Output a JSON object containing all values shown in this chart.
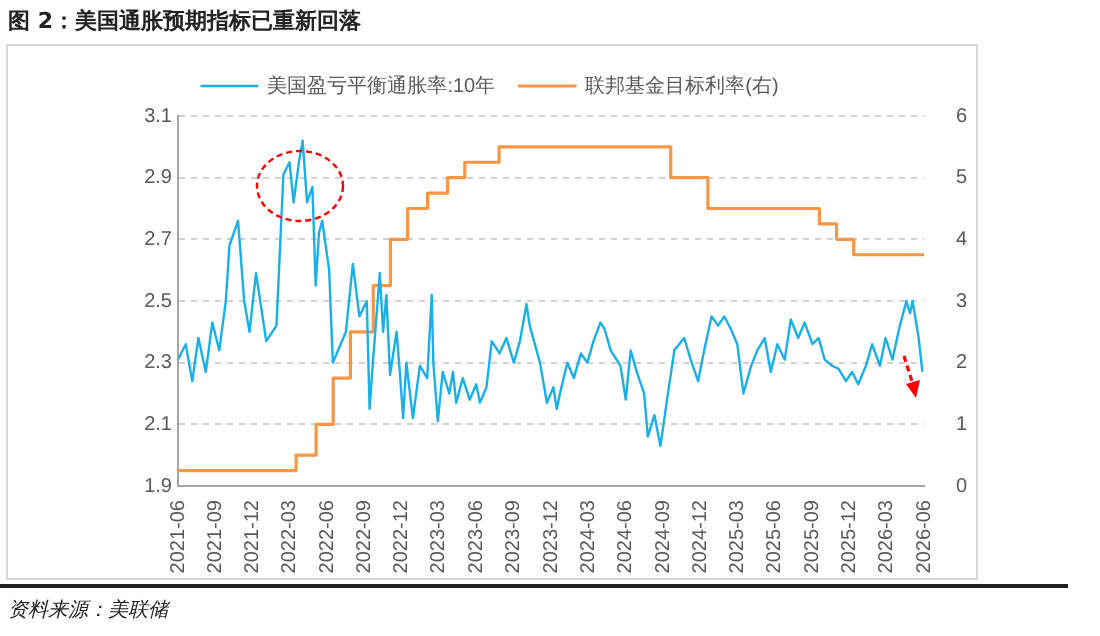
{
  "chart_data": {
    "type": "line",
    "title": "图 2：美国通胀预期指标已重新回落",
    "annotations": [
      "资料来源：美联储"
    ],
    "legend": "top",
    "grid": "y",
    "marker": "none",
    "xlim": [
      "2021-06",
      "2026-06"
    ],
    "xticks": [
      "2021-06",
      "2021-09",
      "2021-12",
      "2022-03",
      "2022-06",
      "2022-09",
      "2022-12",
      "2023-03",
      "2023-06",
      "2023-09",
      "2023-12",
      "2024-03",
      "2024-06",
      "2024-09",
      "2024-12",
      "2025-03",
      "2025-06",
      "2025-09",
      "2025-12",
      "2026-03",
      "2026-06"
    ],
    "ylim": [
      1.9,
      3.1
    ],
    "yticks": [
      1.9,
      2.1,
      2.3,
      2.5,
      2.7,
      2.9,
      3.1
    ],
    "y2lim": [
      0,
      6
    ],
    "y2ticks": [
      0,
      1,
      2,
      3,
      4,
      5,
      6
    ],
    "series": [
      {
        "name": "美国盈亏平衡通胀率:10年",
        "color": "#1aafe6",
        "x": [
          "2021-06-01",
          "2021-06-20",
          "2021-07-06",
          "2021-07-21",
          "2021-08-08",
          "2021-08-24",
          "2021-09-10",
          "2021-09-26",
          "2021-10-05",
          "2021-10-26",
          "2021-11-10",
          "2021-11-23",
          "2021-12-09",
          "2022-01-03",
          "2022-01-28",
          "2022-02-14",
          "2022-03-01",
          "2022-03-11",
          "2022-03-24",
          "2022-04-02",
          "2022-04-13",
          "2022-04-26",
          "2022-05-04",
          "2022-05-12",
          "2022-05-20",
          "2022-06-06",
          "2022-06-15",
          "2022-07-01",
          "2022-07-17",
          "2022-08-03",
          "2022-08-19",
          "2022-09-06",
          "2022-09-13",
          "2022-09-21",
          "2022-10-08",
          "2022-10-16",
          "2022-10-24",
          "2022-11-02",
          "2022-11-18",
          "2022-11-26",
          "2022-12-04",
          "2022-12-12",
          "2022-12-28",
          "2023-01-14",
          "2023-02-01",
          "2023-02-12",
          "2023-02-16",
          "2023-02-27",
          "2023-03-11",
          "2023-03-27",
          "2023-04-05",
          "2023-04-13",
          "2023-04-29",
          "2023-05-16",
          "2023-06-01",
          "2023-06-10",
          "2023-06-26",
          "2023-07-09",
          "2023-07-28",
          "2023-08-14",
          "2023-09-01",
          "2023-09-16",
          "2023-10-02",
          "2023-10-10",
          "2023-11-04",
          "2023-11-21",
          "2023-12-07",
          "2023-12-15",
          "2023-12-23",
          "2024-01-10",
          "2024-01-26",
          "2024-02-12",
          "2024-02-28",
          "2024-03-14",
          "2024-03-31",
          "2024-04-10",
          "2024-04-25",
          "2024-05-19",
          "2024-06-01",
          "2024-06-13",
          "2024-06-28",
          "2024-07-16",
          "2024-07-25",
          "2024-08-10",
          "2024-08-25",
          "2024-09-10",
          "2024-09-28",
          "2024-10-22",
          "2024-11-07",
          "2024-11-25",
          "2024-12-10",
          "2024-12-28",
          "2025-01-13",
          "2025-01-28",
          "2025-02-13",
          "2025-03-01",
          "2025-03-16",
          "2025-04-04",
          "2025-04-19",
          "2025-05-07",
          "2025-05-22",
          "2025-06-07",
          "2025-06-25",
          "2025-07-10",
          "2025-07-28",
          "2025-08-13",
          "2025-09-01",
          "2025-09-16",
          "2025-10-01",
          "2025-10-19",
          "2025-11-04",
          "2025-11-22",
          "2025-12-07",
          "2025-12-22",
          "2026-01-10",
          "2026-01-25",
          "2026-02-13",
          "2026-02-27",
          "2026-03-16",
          "2026-04-01",
          "2026-04-19",
          "2026-04-28",
          "2026-05-04",
          "2026-05-19",
          "2026-05-28"
        ],
        "values": [
          2.31,
          2.36,
          2.24,
          2.38,
          2.27,
          2.43,
          2.34,
          2.5,
          2.68,
          2.76,
          2.5,
          2.4,
          2.59,
          2.37,
          2.42,
          2.91,
          2.95,
          2.82,
          2.95,
          3.02,
          2.82,
          2.87,
          2.55,
          2.72,
          2.76,
          2.6,
          2.3,
          2.35,
          2.4,
          2.62,
          2.45,
          2.5,
          2.15,
          2.3,
          2.59,
          2.4,
          2.52,
          2.26,
          2.4,
          2.27,
          2.12,
          2.3,
          2.12,
          2.29,
          2.25,
          2.52,
          2.3,
          2.11,
          2.27,
          2.2,
          2.27,
          2.17,
          2.25,
          2.18,
          2.23,
          2.17,
          2.22,
          2.37,
          2.33,
          2.38,
          2.3,
          2.37,
          2.49,
          2.42,
          2.3,
          2.17,
          2.22,
          2.15,
          2.2,
          2.3,
          2.25,
          2.33,
          2.3,
          2.37,
          2.43,
          2.41,
          2.34,
          2.29,
          2.18,
          2.34,
          2.27,
          2.2,
          2.06,
          2.13,
          2.03,
          2.18,
          2.34,
          2.38,
          2.31,
          2.24,
          2.34,
          2.45,
          2.42,
          2.45,
          2.41,
          2.36,
          2.2,
          2.29,
          2.34,
          2.38,
          2.27,
          2.36,
          2.31,
          2.44,
          2.38,
          2.43,
          2.36,
          2.38,
          2.31,
          2.29,
          2.28,
          2.24,
          2.27,
          2.23,
          2.29,
          2.36,
          2.29,
          2.38,
          2.31,
          2.41,
          2.5,
          2.46,
          2.5,
          2.38,
          2.27
        ]
      },
      {
        "name": "联邦基金目标利率(右)",
        "type": "step",
        "axis": "y2",
        "color": "#f79646",
        "x": [
          "2021-06-01",
          "2022-03-17",
          "2022-05-05",
          "2022-06-16",
          "2022-07-28",
          "2022-09-22",
          "2022-11-03",
          "2022-12-15",
          "2023-02-02",
          "2023-03-23",
          "2023-05-04",
          "2023-07-27",
          "2024-09-19",
          "2024-12-19",
          "2025-09-18",
          "2025-10-30",
          "2025-12-11",
          "2026-06-01"
        ],
        "values": [
          0.25,
          0.5,
          1.0,
          1.75,
          2.5,
          3.25,
          4.0,
          4.5,
          4.75,
          5.0,
          5.25,
          5.5,
          5.0,
          4.5,
          4.25,
          4.0,
          3.75,
          3.75
        ]
      }
    ]
  }
}
